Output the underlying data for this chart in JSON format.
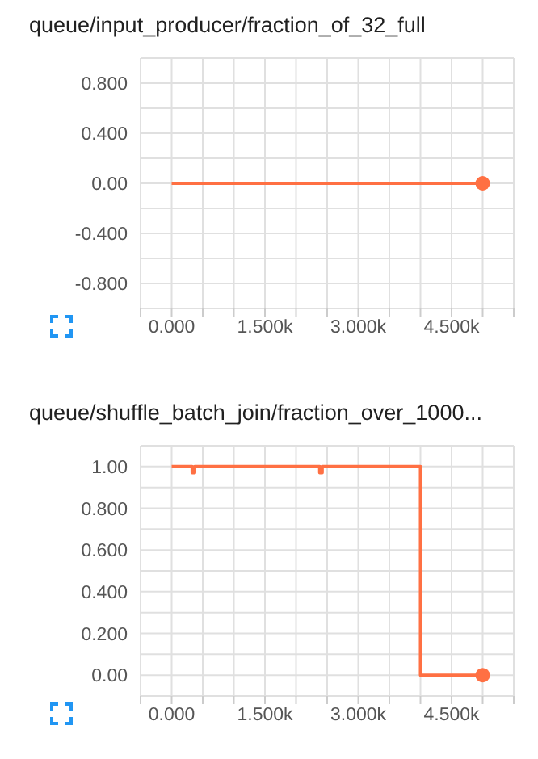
{
  "chart_data": [
    {
      "type": "line",
      "title": "queue/input_producer/fraction_of_32_full",
      "x": [
        0,
        5000
      ],
      "series": [
        {
          "color": "#ff7043",
          "values": [
            0,
            0
          ]
        }
      ],
      "xlim": [
        -500,
        5500
      ],
      "xticks": [
        {
          "value": -500,
          "label": null
        },
        {
          "value": 0,
          "label": "0.000"
        },
        {
          "value": 500,
          "label": null
        },
        {
          "value": 1000,
          "label": null
        },
        {
          "value": 1500,
          "label": "1.500k"
        },
        {
          "value": 2000,
          "label": null
        },
        {
          "value": 2500,
          "label": null
        },
        {
          "value": 3000,
          "label": "3.000k"
        },
        {
          "value": 3500,
          "label": null
        },
        {
          "value": 4000,
          "label": null
        },
        {
          "value": 4500,
          "label": "4.500k"
        },
        {
          "value": 5000,
          "label": null
        },
        {
          "value": 5500,
          "label": null
        }
      ],
      "ylim": [
        -1,
        1
      ],
      "yticks": [
        {
          "value": -1,
          "label": null
        },
        {
          "value": -0.8,
          "label": "-0.800"
        },
        {
          "value": -0.6,
          "label": null
        },
        {
          "value": -0.4,
          "label": "-0.400"
        },
        {
          "value": -0.2,
          "label": null
        },
        {
          "value": 0,
          "label": "0.00"
        },
        {
          "value": 0.2,
          "label": null
        },
        {
          "value": 0.4,
          "label": "0.400"
        },
        {
          "value": 0.6,
          "label": null
        },
        {
          "value": 0.8,
          "label": "0.800"
        },
        {
          "value": 1,
          "label": null
        }
      ],
      "grid": true,
      "legend": false
    },
    {
      "type": "step",
      "title": "queue/shuffle_batch_join/fraction_over_1000...",
      "x": [
        0,
        330,
        370,
        2380,
        2420,
        4000,
        5000
      ],
      "series": [
        {
          "color": "#ff7043",
          "values": [
            1,
            0.97,
            1,
            0.97,
            1,
            0,
            0
          ]
        }
      ],
      "xlim": [
        -500,
        5500
      ],
      "xticks": [
        {
          "value": -500,
          "label": null
        },
        {
          "value": 0,
          "label": "0.000"
        },
        {
          "value": 500,
          "label": null
        },
        {
          "value": 1000,
          "label": null
        },
        {
          "value": 1500,
          "label": "1.500k"
        },
        {
          "value": 2000,
          "label": null
        },
        {
          "value": 2500,
          "label": null
        },
        {
          "value": 3000,
          "label": "3.000k"
        },
        {
          "value": 3500,
          "label": null
        },
        {
          "value": 4000,
          "label": null
        },
        {
          "value": 4500,
          "label": "4.500k"
        },
        {
          "value": 5000,
          "label": null
        },
        {
          "value": 5500,
          "label": null
        }
      ],
      "ylim": [
        -0.1,
        1.1
      ],
      "yticks": [
        {
          "value": -0.1,
          "label": null
        },
        {
          "value": 0,
          "label": "0.00"
        },
        {
          "value": 0.1,
          "label": null
        },
        {
          "value": 0.2,
          "label": "0.200"
        },
        {
          "value": 0.3,
          "label": null
        },
        {
          "value": 0.4,
          "label": "0.400"
        },
        {
          "value": 0.5,
          "label": null
        },
        {
          "value": 0.6,
          "label": "0.600"
        },
        {
          "value": 0.7,
          "label": null
        },
        {
          "value": 0.8,
          "label": "0.800"
        },
        {
          "value": 0.9,
          "label": null
        },
        {
          "value": 1,
          "label": "1.00"
        },
        {
          "value": 1.1,
          "label": null
        }
      ],
      "grid": true,
      "legend": false
    }
  ]
}
